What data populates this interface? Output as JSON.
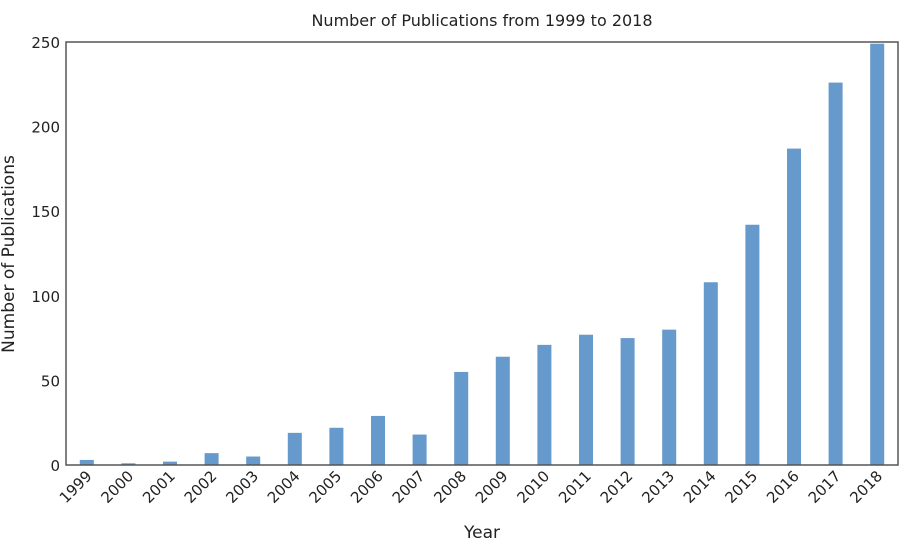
{
  "chart_data": {
    "type": "bar",
    "title": "Number of Publications from 1999 to 2018",
    "xlabel": "Year",
    "ylabel": "Number of Publications",
    "ylim": [
      0,
      250
    ],
    "yticks": [
      0,
      50,
      100,
      150,
      200,
      250
    ],
    "grid": false,
    "categories": [
      "1999",
      "2000",
      "2001",
      "2002",
      "2003",
      "2004",
      "2005",
      "2006",
      "2007",
      "2008",
      "2009",
      "2010",
      "2011",
      "2012",
      "2013",
      "2014",
      "2015",
      "2016",
      "2017",
      "2018"
    ],
    "values": [
      3,
      1,
      2,
      7,
      5,
      19,
      22,
      29,
      18,
      55,
      64,
      71,
      77,
      75,
      80,
      108,
      142,
      187,
      226,
      249
    ],
    "bar_color": "#6699cc"
  }
}
